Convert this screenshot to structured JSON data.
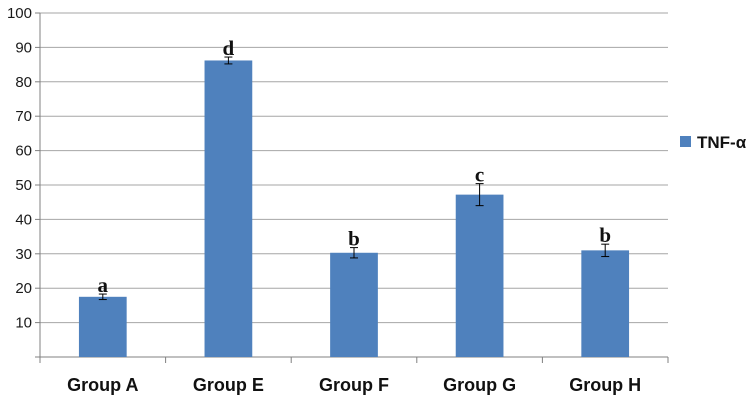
{
  "chart_data": {
    "type": "bar",
    "categories": [
      "Group A",
      "Group E",
      "Group F",
      "Group G",
      "Group H"
    ],
    "series": [
      {
        "name": "TNF-α",
        "values": [
          17.5,
          86.2,
          30.3,
          47.2,
          31.0
        ],
        "errors": [
          0.8,
          1.0,
          1.5,
          3.2,
          1.8
        ],
        "labels": [
          "a",
          "d",
          "b",
          "c",
          "b"
        ]
      }
    ],
    "title": "",
    "xlabel": "",
    "ylabel": "",
    "ylim": [
      0,
      100
    ],
    "yticks": [
      0,
      10,
      20,
      30,
      40,
      50,
      60,
      70,
      80,
      90,
      100
    ],
    "ytick_labels": [
      "",
      "10",
      "20",
      "30",
      "40",
      "50",
      "60",
      "70",
      "80",
      "90",
      "100"
    ],
    "grid": true,
    "legend_position": "right",
    "colors": {
      "bar": "#4f81bd",
      "grid": "#a6a6a6",
      "axis": "#808080"
    }
  }
}
